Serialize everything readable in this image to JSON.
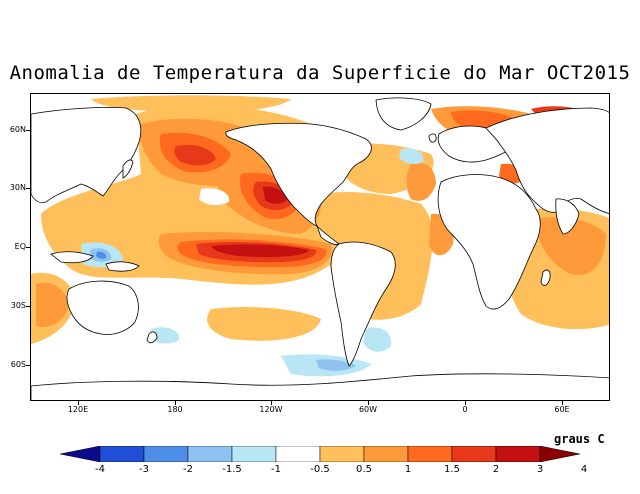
{
  "title": "Anomalia de Temperatura da Superficie do Mar OCT2015",
  "units": "graus C",
  "latitude_labels": [
    "60N",
    "30N",
    "EQ",
    "30S",
    "60S"
  ],
  "longitude_labels": [
    "120E",
    "180",
    "120W",
    "60W",
    "0",
    "60E"
  ],
  "colorbar": {
    "labels": [
      "-4",
      "-3",
      "-2",
      "-1.5",
      "-1",
      "-0.5",
      "0.5",
      "1",
      "1.5",
      "2",
      "3",
      "4"
    ],
    "colors": [
      "#0a0a8c",
      "#1f4fd6",
      "#4e8ee8",
      "#8ec2f0",
      "#b8e6f5",
      "#ffffff",
      "#ffbf5a",
      "#ff9a3a",
      "#ff6a1f",
      "#e8381a",
      "#c41010",
      "#8a0000"
    ]
  },
  "palette": {
    "ocean": "#ffffff",
    "weak_warm": "#ffbf5a",
    "warm": "#ff9a3a",
    "strong_warm": "#ff6a1f",
    "hot": "#e8381a",
    "very_hot": "#c41010",
    "cool": "#b8e6f5",
    "cooler": "#8ec2f0",
    "cold": "#4e8ee8"
  }
}
